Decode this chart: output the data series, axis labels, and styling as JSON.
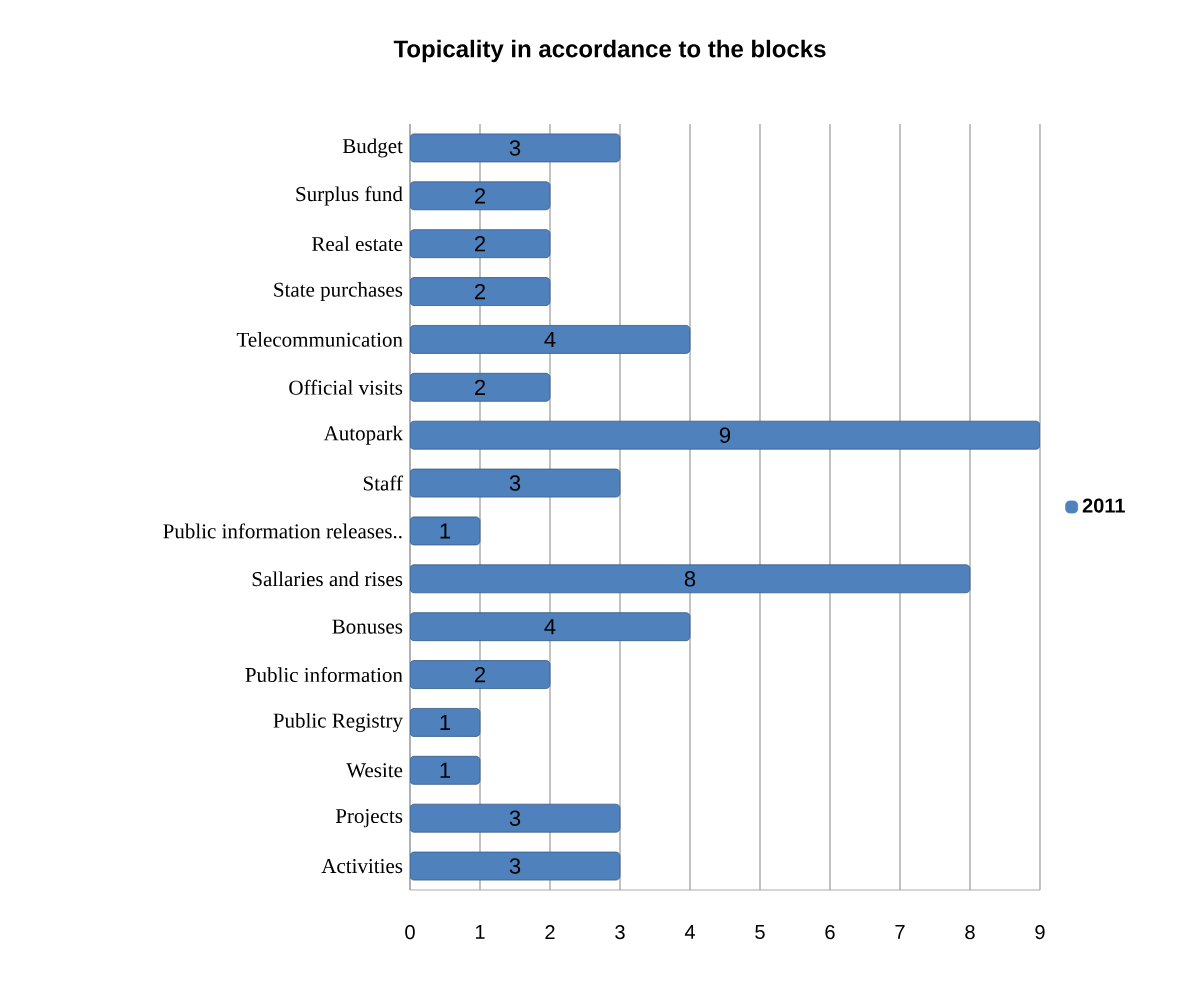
{
  "chart_data": {
    "type": "bar",
    "orientation": "horizontal",
    "title": "Topicality in accordance to the blocks",
    "categories": [
      "Budget",
      "Surplus fund",
      "Real estate",
      "State purchases",
      "Telecommunication",
      "Official visits",
      "Autopark",
      "Staff",
      "Public information releases..",
      "Sallaries and rises",
      "Bonuses",
      "Public information",
      "Public Registry",
      "Wesite",
      "Projects",
      "Activities"
    ],
    "series": [
      {
        "name": "2011",
        "color": "#4f81bd",
        "values": [
          3,
          2,
          2,
          2,
          4,
          2,
          9,
          3,
          1,
          8,
          4,
          2,
          1,
          1,
          3,
          3
        ]
      }
    ],
    "xlim": [
      0,
      9
    ],
    "xticks": [
      0,
      1,
      2,
      3,
      4,
      5,
      6,
      7,
      8,
      9
    ],
    "grid": "x",
    "legend": "right",
    "data_labels": true
  }
}
